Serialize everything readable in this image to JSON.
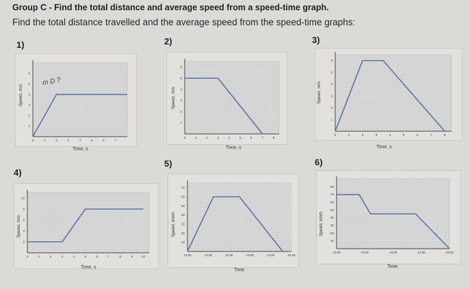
{
  "header": {
    "title": "Group C - Find the total distance and average speed from a speed-time graph.",
    "subtitle": "Find the total distance travelled and the average speed from the speed-time graphs:"
  },
  "questions": [
    {
      "number": "1)",
      "ylabel": "Speed, m/s",
      "xlabel": "Time, s",
      "annotation": "m D ?"
    },
    {
      "number": "2)",
      "ylabel": "Speed, m/s",
      "xlabel": "Time, s"
    },
    {
      "number": "3)",
      "ylabel": "Speed, m/s",
      "xlabel": "Time, s"
    },
    {
      "number": "4)",
      "ylabel": "Speed, m/s",
      "xlabel": "Time, s"
    },
    {
      "number": "5)",
      "ylabel": "Speed, km/h",
      "xlabel": "Time"
    },
    {
      "number": "6)",
      "ylabel": "Speed, km/h",
      "xlabel": "Time"
    }
  ],
  "chart_data": [
    {
      "type": "line",
      "xlabel": "Time, s",
      "ylabel": "Speed, m/s",
      "x_ticks": [
        "0",
        "1",
        "2",
        "3",
        "4",
        "5",
        "6",
        "7"
      ],
      "y_ticks": [
        "1",
        "2",
        "3",
        "4",
        "5",
        "6"
      ],
      "xlim": [
        0,
        8
      ],
      "ylim": [
        0,
        7
      ],
      "series": [
        {
          "x": [
            0,
            2,
            8
          ],
          "y": [
            0,
            4,
            4
          ]
        }
      ]
    },
    {
      "type": "line",
      "xlabel": "Time, s",
      "ylabel": "Speed, m/s",
      "x_ticks": [
        "0",
        "1",
        "2",
        "3",
        "4",
        "5",
        "6",
        "7",
        "8"
      ],
      "y_ticks": [
        "1",
        "2",
        "3",
        "4",
        "5",
        "6"
      ],
      "xlim": [
        0,
        8.5
      ],
      "ylim": [
        0,
        6.5
      ],
      "series": [
        {
          "x": [
            0,
            3,
            7
          ],
          "y": [
            5,
            5,
            0
          ]
        }
      ]
    },
    {
      "type": "line",
      "xlabel": "Time, s",
      "ylabel": "Speed, m/s",
      "x_ticks": [
        "0",
        "1",
        "2",
        "3",
        "4",
        "5",
        "6",
        "7",
        "8"
      ],
      "y_ticks": [
        "1",
        "2",
        "3",
        "4",
        "5",
        "6"
      ],
      "xlim": [
        0,
        8.5
      ],
      "ylim": [
        0,
        6.5
      ],
      "series": [
        {
          "x": [
            0,
            2,
            3.5,
            8
          ],
          "y": [
            0,
            6,
            6,
            0
          ]
        }
      ]
    },
    {
      "type": "line",
      "xlabel": "Time, s",
      "ylabel": "Speed, m/s",
      "x_ticks": [
        "0",
        "1",
        "2",
        "3",
        "4",
        "5",
        "6",
        "7",
        "8",
        "9",
        "10"
      ],
      "y_ticks": [
        "2",
        "4",
        "6",
        "8",
        "10"
      ],
      "xlim": [
        0,
        10.5
      ],
      "ylim": [
        0,
        11
      ],
      "series": [
        {
          "x": [
            0,
            3,
            5,
            10
          ],
          "y": [
            2,
            2,
            8,
            8
          ]
        }
      ]
    },
    {
      "type": "line",
      "xlabel": "Time",
      "ylabel": "Speed, km/h",
      "x_ticks": [
        "13:00",
        "13:30",
        "13:45",
        "14:00",
        "14:15",
        "14:30"
      ],
      "y_ticks": [
        "10",
        "20",
        "30",
        "40",
        "50",
        "60",
        "70"
      ],
      "xlim": [
        0,
        6
      ],
      "ylim": [
        0,
        75
      ],
      "series": [
        {
          "x": [
            0,
            1.5,
            3,
            5.5
          ],
          "y": [
            0,
            60,
            60,
            0
          ]
        }
      ]
    },
    {
      "type": "line",
      "xlabel": "Time",
      "ylabel": "Speed, km/h",
      "x_ticks": [
        "13:00",
        "13:30",
        "14:00",
        "14:30",
        "15:00"
      ],
      "y_ticks": [
        "10",
        "20",
        "30",
        "40",
        "50",
        "60",
        "70",
        "80"
      ],
      "xlim": [
        0,
        5
      ],
      "ylim": [
        0,
        90
      ],
      "series": [
        {
          "x": [
            0,
            1,
            1.5,
            3.5,
            5
          ],
          "y": [
            70,
            70,
            45,
            45,
            0
          ]
        }
      ]
    }
  ]
}
